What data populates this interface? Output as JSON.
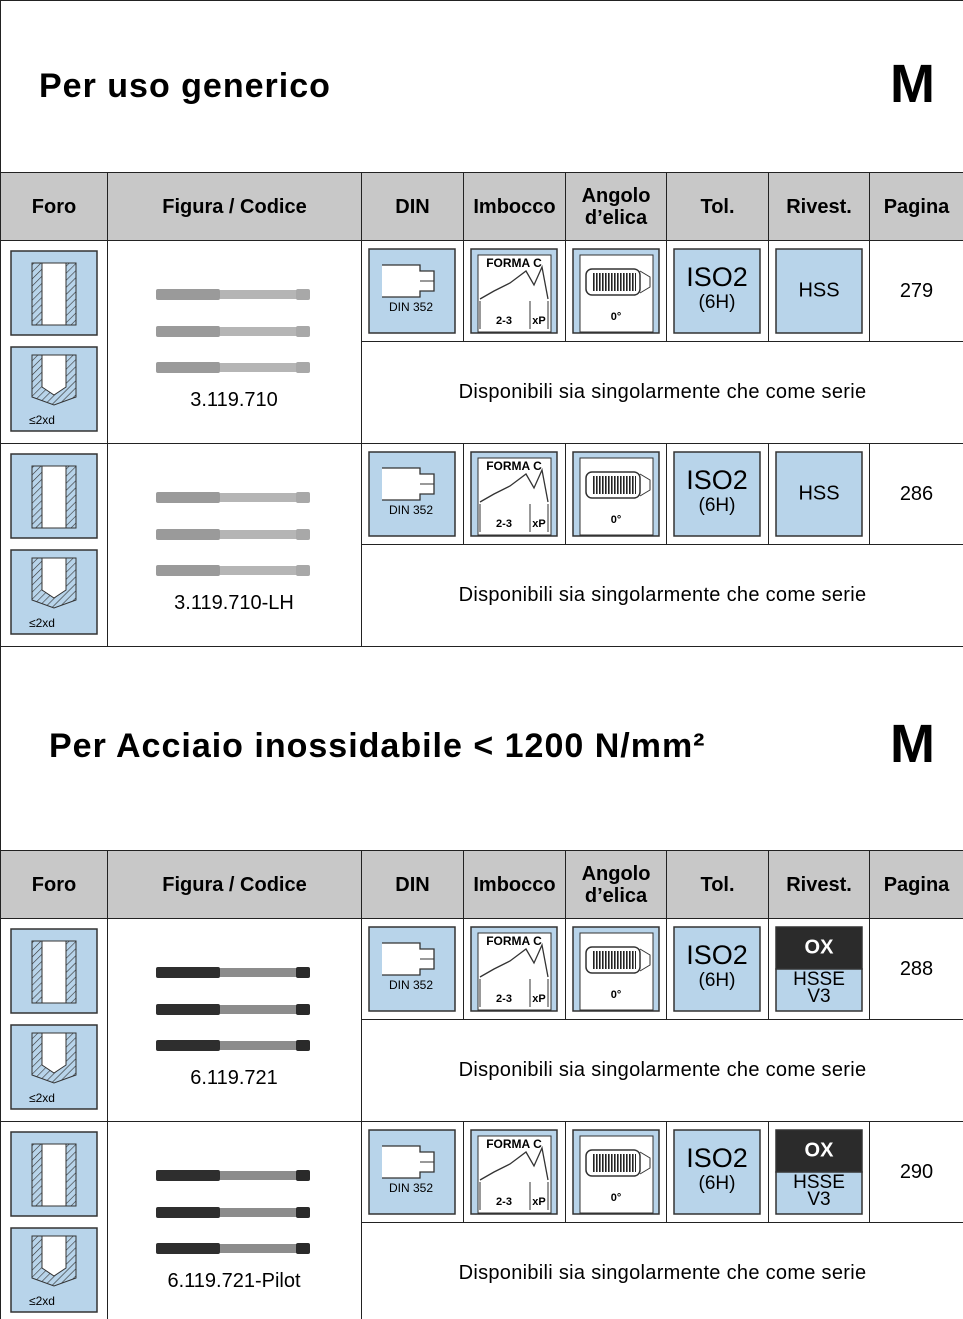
{
  "sections": [
    {
      "title": "Per uso generico",
      "mark": "M",
      "headers": [
        "Foro",
        "Figura / Codice",
        "DIN",
        "Imbocco",
        "Angolo d’elica",
        "Tol.",
        "Rivest.",
        "Pagina"
      ],
      "rows": [
        {
          "foro": "≤2xd",
          "code": "3.119.710",
          "din": "DIN 352",
          "imbocco": "FORMA C",
          "imbocco_dim": "2-3",
          "imbocco_xp": "xP",
          "angolo": "0°",
          "tol": "ISO2",
          "tol_sub": "(6H)",
          "rivest": [
            "HSS"
          ],
          "pagina": "279",
          "note": "Disponibili sia singolarmente che come serie"
        },
        {
          "foro": "≤2xd",
          "code": "3.119.710-LH",
          "din": "DIN 352",
          "imbocco": "FORMA C",
          "imbocco_dim": "2-3",
          "imbocco_xp": "xP",
          "angolo": "0°",
          "tol": "ISO2",
          "tol_sub": "(6H)",
          "rivest": [
            "HSS"
          ],
          "pagina": "286",
          "note": "Disponibili sia singolarmente che come serie"
        }
      ]
    },
    {
      "title": "Per Acciaio inossidabile < 1200 N/mm²",
      "mark": "M",
      "headers": [
        "Foro",
        "Figura / Codice",
        "DIN",
        "Imbocco",
        "Angolo d’elica",
        "Tol.",
        "Rivest.",
        "Pagina"
      ],
      "rows": [
        {
          "foro": "≤2xd",
          "code": "6.119.721",
          "din": "DIN 352",
          "imbocco": "FORMA C",
          "imbocco_dim": "2-3",
          "imbocco_xp": "xP",
          "angolo": "0°",
          "tol": "ISO2",
          "tol_sub": "(6H)",
          "coating": "OX",
          "rivest": [
            "HSSE",
            "V3"
          ],
          "pagina": "288",
          "note": "Disponibili sia singolarmente che come serie"
        },
        {
          "foro": "≤2xd",
          "code": "6.119.721-Pilot",
          "din": "DIN 352",
          "imbocco": "FORMA C",
          "imbocco_dim": "2-3",
          "imbocco_xp": "xP",
          "angolo": "0°",
          "tol": "ISO2",
          "tol_sub": "(6H)",
          "coating": "OX",
          "rivest": [
            "HSSE",
            "V3"
          ],
          "pagina": "290",
          "note": "Disponibili sia singolarmente che come serie"
        }
      ]
    }
  ]
}
